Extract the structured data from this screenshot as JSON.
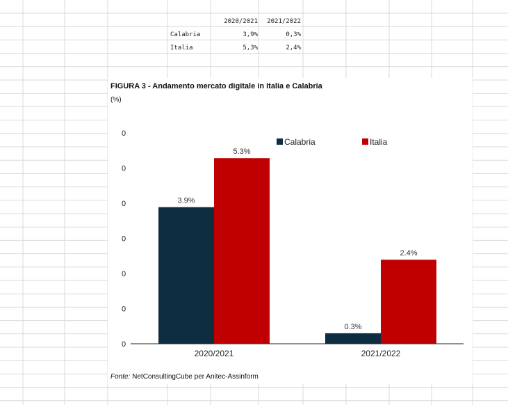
{
  "sheet": {
    "headers": [
      "2020/2021",
      "2021/2022"
    ],
    "rows": [
      {
        "label": "Calabria",
        "values": [
          "3,9%",
          "0,3%"
        ]
      },
      {
        "label": "Italia",
        "values": [
          "5,3%",
          "2,4%"
        ]
      }
    ]
  },
  "figure": {
    "title": "FIGURA 3  - Andamento mercato digitale in Italia e Calabria",
    "unit": "(%)",
    "source_label": "Fonte:",
    "source_text": " NetConsultingCube per Anitec-Assinform"
  },
  "chart_data": {
    "type": "bar",
    "categories": [
      "2020/2021",
      "2021/2022"
    ],
    "series": [
      {
        "name": "Calabria",
        "values": [
          3.9,
          0.3
        ],
        "labels": [
          "3.9%",
          "0.3%"
        ],
        "color": "#0f2d40"
      },
      {
        "name": "Italia",
        "values": [
          5.3,
          2.4
        ],
        "labels": [
          "5.3%",
          "2.4%"
        ],
        "color": "#c00000"
      }
    ],
    "y_tick_labels": [
      "0",
      "0",
      "0",
      "0",
      "0",
      "0",
      "0"
    ],
    "ylim": [
      0,
      6
    ],
    "legend_position": "top-right",
    "grid": false
  }
}
